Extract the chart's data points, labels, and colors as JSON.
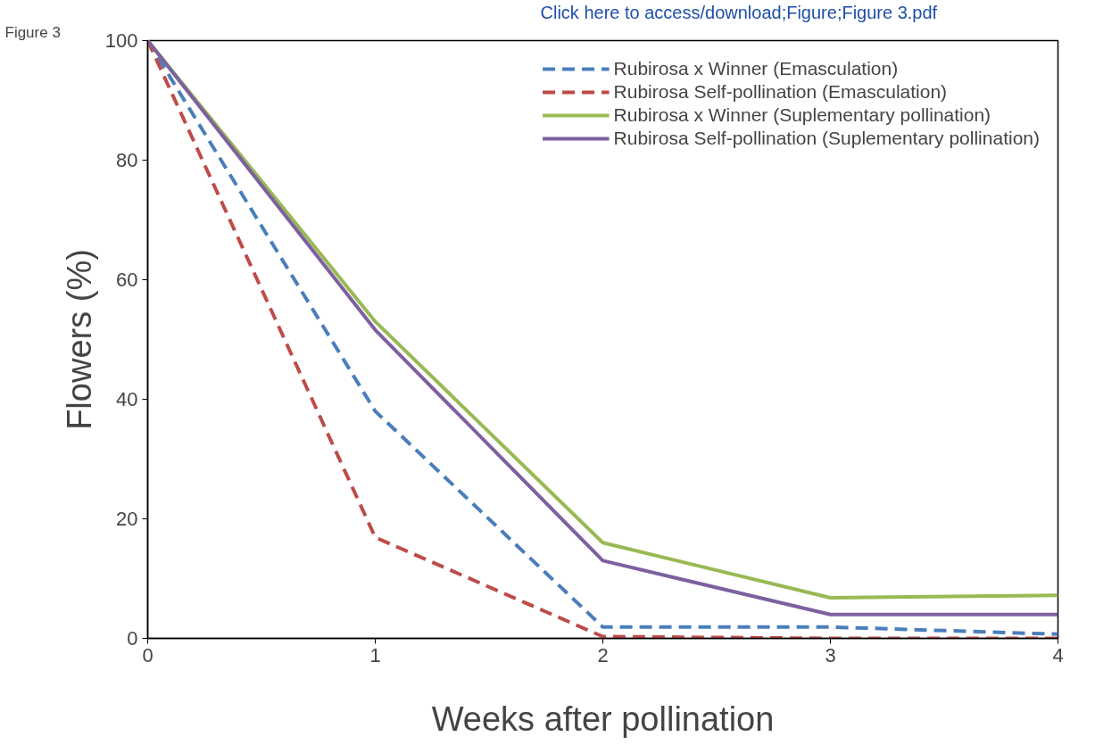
{
  "chart_data": {
    "type": "line",
    "xlabel": "Weeks after pollination",
    "ylabel": "Flowers (%)",
    "x": [
      0,
      1,
      2,
      3,
      4
    ],
    "series": [
      {
        "name": "Rubirosa x Winner (Emasculation)",
        "color": "#4a7ebb",
        "line_style": "dashed",
        "values": [
          100,
          38,
          1.9,
          1.9,
          0.7
        ]
      },
      {
        "name": "Rubirosa Self-pollination (Emasculation)",
        "color": "#be4b48",
        "line_style": "dashed",
        "values": [
          100,
          16.9,
          0.3,
          0,
          0
        ]
      },
      {
        "name": "Rubirosa x Winner (Suplementary pollination)",
        "color": "#98b954",
        "line_style": "solid",
        "values": [
          100,
          53,
          16,
          6.8,
          7.2
        ]
      },
      {
        "name": "Rubirosa Self-pollination (Suplementary pollination)",
        "color": "#7d60a0",
        "line_style": "solid",
        "values": [
          100,
          51.6,
          13,
          4,
          4
        ]
      }
    ],
    "xlim": [
      0,
      4
    ],
    "xticks": [
      0,
      1,
      2,
      3,
      4
    ],
    "ylim": [
      0,
      100
    ],
    "yticks": [
      0,
      20,
      40,
      60,
      80,
      100
    ],
    "grid": false,
    "legend": "top right",
    "marker": "none",
    "annotations": [
      "Figure 3",
      "Click here to access/download;Figure;Figure 3.pdf"
    ]
  }
}
